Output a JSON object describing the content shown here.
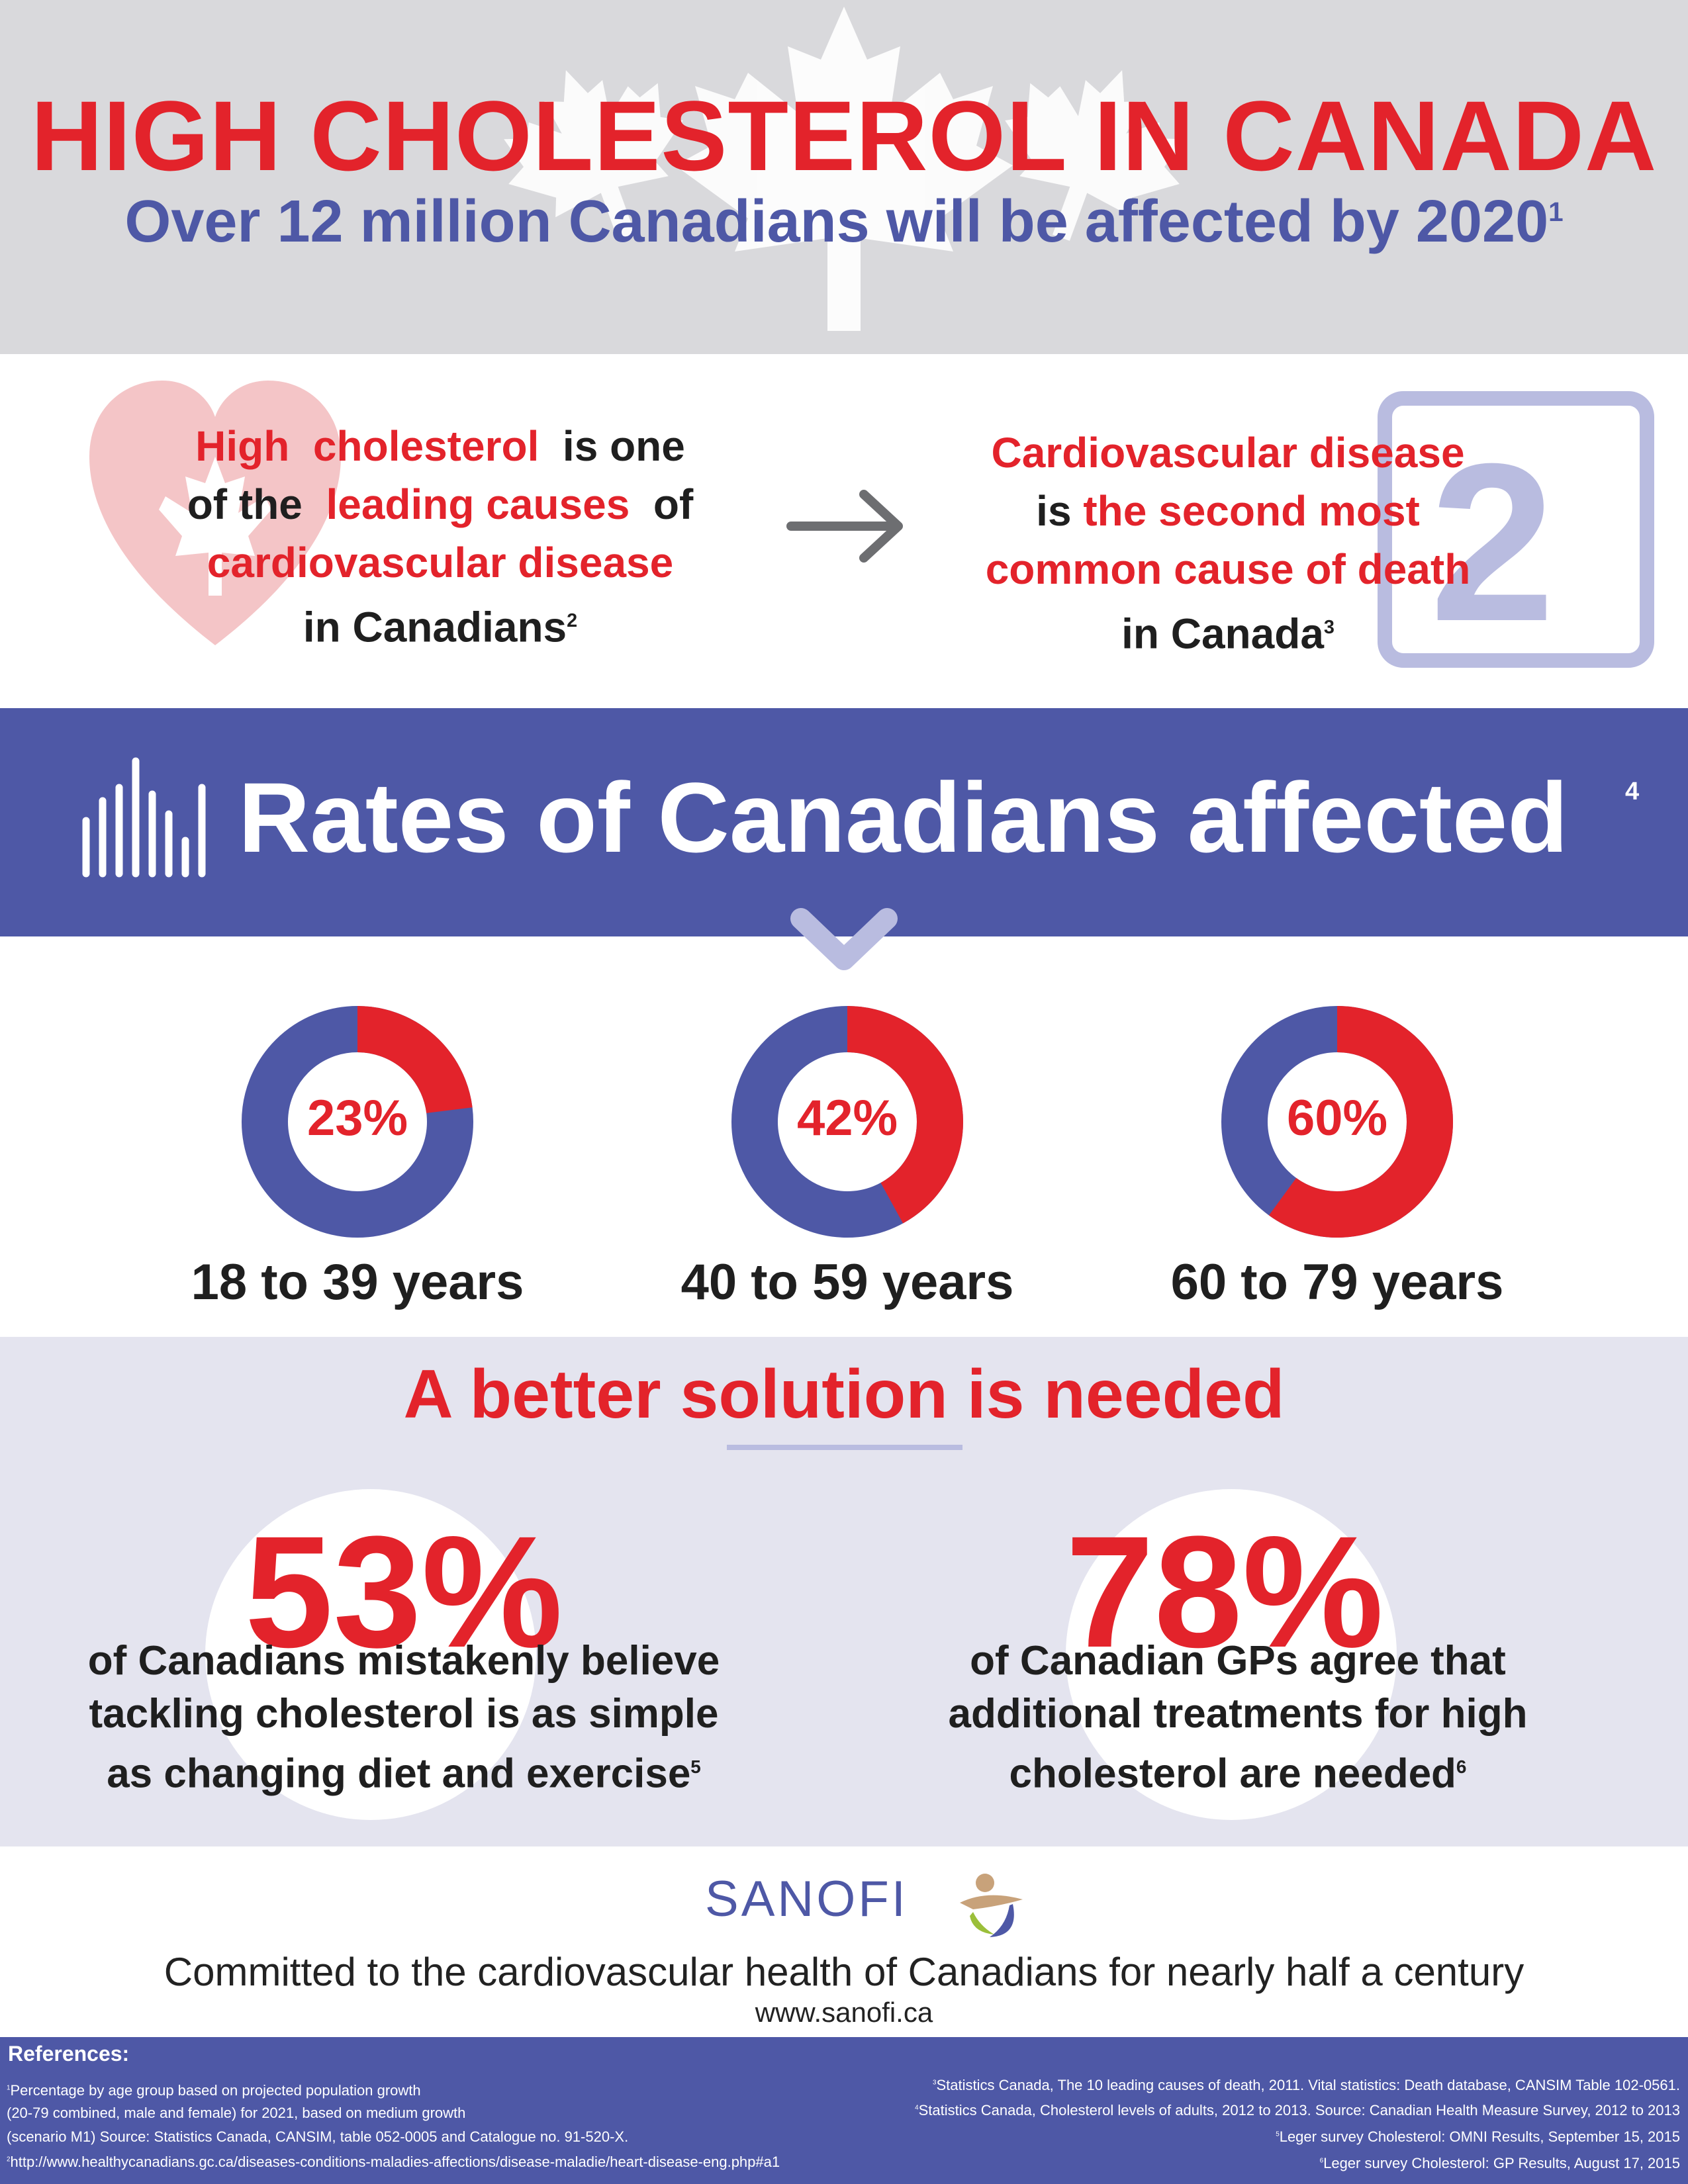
{
  "header": {
    "title": "HIGH CHOLESTEROL IN CANADA",
    "subtitle": "Over 12 million Canadians will be affected by 2020",
    "subtitle_ref": "1"
  },
  "causes": {
    "left": {
      "part1": "High",
      "part2": "cholesterol",
      "part3": "is one",
      "part4": "of the",
      "part5": "leading causes",
      "part6": "of",
      "part7": "cardiovascular disease",
      "part8": "in Canadians",
      "ref": "2"
    },
    "right": {
      "line1": "Cardiovascular disease",
      "line2a": "is",
      "line2b": "the second most",
      "line3": "common cause of death",
      "line4": "in Canada",
      "ref": "3",
      "rank_number": "2"
    }
  },
  "rates": {
    "title": "Rates of Canadians affected",
    "ref": "4",
    "groups": [
      {
        "percent": "23%",
        "value": 23,
        "label": "18 to 39 years"
      },
      {
        "percent": "42%",
        "value": 42,
        "label": "40 to 59 years"
      },
      {
        "percent": "60%",
        "value": 60,
        "label": "60 to 79 years"
      }
    ]
  },
  "solution": {
    "title_part1": "A better",
    "title_part2": "solution",
    "title_part3": "is needed",
    "stat_left": {
      "value": "53%",
      "line1": "of Canadians mistakenly believe",
      "line2": "tackling cholesterol  is as  simple",
      "line3": "as  changing  diet  and  exercise",
      "ref": "5"
    },
    "stat_right": {
      "value": "78%",
      "line1": "of  Canadian  GPs  agree  that",
      "line2": "additional  treatments  for high",
      "line3": "cholesterol  are  needed",
      "ref": "6"
    }
  },
  "footer": {
    "brand": "SANOFI",
    "tagline": "Committed to the cardiovascular health of Canadians for nearly half a century",
    "website": "www.sanofi.ca"
  },
  "references": {
    "title": "References:",
    "left": [
      {
        "num": "1",
        "text": "Percentage by age group based on projected population growth"
      },
      {
        "num": "",
        "text": "(20-79 combined, male and female) for 2021, based on medium growth"
      },
      {
        "num": "",
        "text": "(scenario M1) Source: Statistics Canada, CANSIM, table 052-0005 and Catalogue no. 91-520-X."
      },
      {
        "num": "2",
        "text": "http://www.healthycanadians.gc.ca/diseases-conditions-maladies-affections/disease-maladie/heart-disease-eng.php#a1"
      }
    ],
    "right": [
      {
        "num": "3",
        "text": "Statistics Canada, The 10 leading causes of death, 2011. Vital statistics: Death database, CANSIM Table 102-0561."
      },
      {
        "num": "4",
        "text": "Statistics Canada, Cholesterol levels of adults, 2012 to 2013. Source: Canadian Health Measure Survey, 2012 to 2013"
      },
      {
        "num": "5",
        "text": "Leger survey Cholesterol: OMNI Results, September 15, 2015"
      },
      {
        "num": "6",
        "text": "Leger survey Cholesterol: GP Results, August 17, 2015"
      }
    ]
  },
  "colors": {
    "red": "#e3232b",
    "blue": "#4e58a6",
    "light_lavender": "#e4e4ef",
    "header_gray": "#d9d9dc"
  }
}
